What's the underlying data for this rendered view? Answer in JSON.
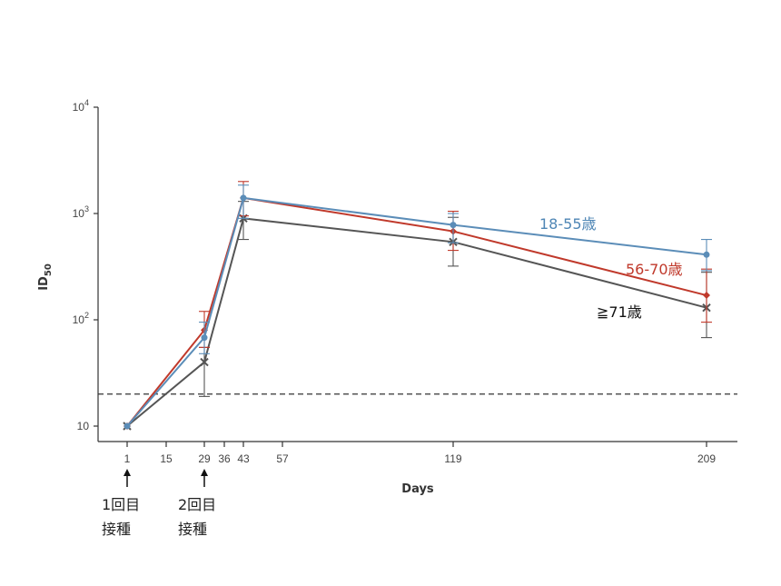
{
  "chart_data": {
    "type": "line",
    "ylabel": "ID",
    "ylabel_sub": "50",
    "xlabel": "Days",
    "yscale": "log",
    "ylim": [
      10,
      10000
    ],
    "xlim": [
      1,
      220
    ],
    "x_ticks": [
      1,
      15,
      29,
      36,
      43,
      57,
      119,
      209
    ],
    "y_ticks": [
      {
        "value": 10,
        "base": "10",
        "exp": ""
      },
      {
        "value": 100,
        "base": "10",
        "exp": "2"
      },
      {
        "value": 1000,
        "base": "10",
        "exp": "3"
      },
      {
        "value": 10000,
        "base": "10",
        "exp": "4"
      }
    ],
    "threshold": 20,
    "series": [
      {
        "name": "18-55歳",
        "color": "#5b8db8",
        "marker": "circle",
        "points": [
          {
            "x": 1,
            "y": 10,
            "lo": 10,
            "hi": 10
          },
          {
            "x": 29,
            "y": 68,
            "lo": 48,
            "hi": 95
          },
          {
            "x": 43,
            "y": 1400,
            "lo": 900,
            "hi": 1850
          },
          {
            "x": 119,
            "y": 780,
            "lo": 530,
            "hi": 1000
          },
          {
            "x": 209,
            "y": 410,
            "lo": 290,
            "hi": 570
          }
        ]
      },
      {
        "name": "56-70歳",
        "color": "#c0392b",
        "marker": "diamond",
        "points": [
          {
            "x": 1,
            "y": 10,
            "lo": 10,
            "hi": 10
          },
          {
            "x": 29,
            "y": 80,
            "lo": 55,
            "hi": 120
          },
          {
            "x": 43,
            "y": 1400,
            "lo": 950,
            "hi": 2000
          },
          {
            "x": 119,
            "y": 680,
            "lo": 450,
            "hi": 1050
          },
          {
            "x": 209,
            "y": 170,
            "lo": 95,
            "hi": 300
          }
        ]
      },
      {
        "name": "≧71歳",
        "color": "#555555",
        "marker": "x",
        "points": [
          {
            "x": 1,
            "y": 10,
            "lo": 10,
            "hi": 10
          },
          {
            "x": 29,
            "y": 40,
            "lo": 19,
            "hi": 55
          },
          {
            "x": 43,
            "y": 900,
            "lo": 570,
            "hi": 1300
          },
          {
            "x": 119,
            "y": 540,
            "lo": 320,
            "hi": 920
          },
          {
            "x": 209,
            "y": 130,
            "lo": 68,
            "hi": 280
          }
        ]
      }
    ]
  },
  "annotations": {
    "dose1_line1": "1回目",
    "dose1_line2": "接種",
    "dose2_line1": "2回目",
    "dose2_line2": "接種"
  }
}
